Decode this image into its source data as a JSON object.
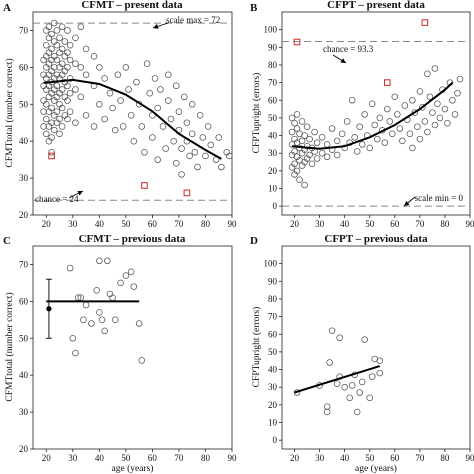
{
  "chart_data": [
    {
      "panel": "A",
      "type": "scatter",
      "title": "CFMT – present data",
      "xlabel": "",
      "ylabel": "CFMTtotal (number correct)",
      "xlim": [
        15,
        90
      ],
      "ylim": [
        20,
        75
      ],
      "xticks": [
        "20",
        "30",
        "40",
        "50",
        "60",
        "70",
        "80",
        "90"
      ],
      "yticks": [
        "20",
        "30",
        "40",
        "50",
        "60",
        "70"
      ],
      "reference_lines": [
        {
          "y": 72,
          "label": "scale max = 72"
        },
        {
          "y": 24,
          "label": "chance = 24"
        }
      ],
      "fit_curve": [
        [
          19,
          55.8
        ],
        [
          30,
          56.6
        ],
        [
          40,
          55.5
        ],
        [
          50,
          52.6
        ],
        [
          60,
          48.1
        ],
        [
          70,
          42.0
        ],
        [
          80,
          37.6
        ],
        [
          86,
          35.2
        ]
      ],
      "points": [
        [
          19,
          62
        ],
        [
          19,
          58
        ],
        [
          19,
          55
        ],
        [
          19,
          51
        ],
        [
          19,
          48
        ],
        [
          19,
          44
        ],
        [
          20,
          70
        ],
        [
          20,
          66
        ],
        [
          20,
          63
        ],
        [
          20,
          60
        ],
        [
          20,
          57
        ],
        [
          20,
          54
        ],
        [
          20,
          50
        ],
        [
          20,
          46
        ],
        [
          20,
          42
        ],
        [
          21,
          71
        ],
        [
          21,
          68
        ],
        [
          21,
          64
        ],
        [
          21,
          61
        ],
        [
          21,
          58
        ],
        [
          21,
          55
        ],
        [
          21,
          52
        ],
        [
          21,
          48
        ],
        [
          21,
          44
        ],
        [
          21,
          40
        ],
        [
          22,
          69
        ],
        [
          22,
          65
        ],
        [
          22,
          62
        ],
        [
          22,
          59
        ],
        [
          22,
          56
        ],
        [
          22,
          53
        ],
        [
          22,
          49
        ],
        [
          22,
          45
        ],
        [
          22,
          41
        ],
        [
          22,
          37
        ],
        [
          23,
          72
        ],
        [
          23,
          67
        ],
        [
          23,
          63
        ],
        [
          23,
          60
        ],
        [
          23,
          57
        ],
        [
          23,
          54
        ],
        [
          23,
          51
        ],
        [
          23,
          47
        ],
        [
          23,
          43
        ],
        [
          24,
          70
        ],
        [
          24,
          66
        ],
        [
          24,
          62
        ],
        [
          24,
          58
        ],
        [
          24,
          55
        ],
        [
          24,
          52
        ],
        [
          24,
          48
        ],
        [
          24,
          45
        ],
        [
          25,
          68
        ],
        [
          25,
          64
        ],
        [
          25,
          60
        ],
        [
          25,
          57
        ],
        [
          25,
          53
        ],
        [
          25,
          50
        ],
        [
          25,
          46
        ],
        [
          25,
          42
        ],
        [
          26,
          71
        ],
        [
          26,
          65
        ],
        [
          26,
          61
        ],
        [
          26,
          58
        ],
        [
          26,
          54
        ],
        [
          26,
          49
        ],
        [
          26,
          44
        ],
        [
          27,
          67
        ],
        [
          27,
          63
        ],
        [
          27,
          59
        ],
        [
          27,
          56
        ],
        [
          27,
          52
        ],
        [
          27,
          47
        ],
        [
          28,
          70
        ],
        [
          28,
          64
        ],
        [
          28,
          60
        ],
        [
          28,
          55
        ],
        [
          28,
          51
        ],
        [
          28,
          46
        ],
        [
          29,
          66
        ],
        [
          29,
          62
        ],
        [
          29,
          57
        ],
        [
          29,
          53
        ],
        [
          29,
          48
        ],
        [
          31,
          68
        ],
        [
          31,
          61
        ],
        [
          31,
          54
        ],
        [
          31,
          45
        ],
        [
          33,
          71
        ],
        [
          33,
          60
        ],
        [
          33,
          52
        ],
        [
          35,
          65
        ],
        [
          35,
          58
        ],
        [
          35,
          47
        ],
        [
          38,
          63
        ],
        [
          38,
          55
        ],
        [
          38,
          44
        ],
        [
          40,
          60
        ],
        [
          40,
          50
        ],
        [
          42,
          57
        ],
        [
          42,
          46
        ],
        [
          44,
          53
        ],
        [
          45,
          49
        ],
        [
          46,
          43
        ],
        [
          47,
          58
        ],
        [
          48,
          51
        ],
        [
          49,
          44
        ],
        [
          50,
          60
        ],
        [
          51,
          54
        ],
        [
          52,
          47
        ],
        [
          53,
          40
        ],
        [
          54,
          56
        ],
        [
          55,
          50
        ],
        [
          56,
          44
        ],
        [
          57,
          37
        ],
        [
          58,
          61
        ],
        [
          59,
          53
        ],
        [
          60,
          47
        ],
        [
          60,
          41
        ],
        [
          61,
          57
        ],
        [
          62,
          49
        ],
        [
          62,
          35
        ],
        [
          63,
          54
        ],
        [
          64,
          44
        ],
        [
          65,
          38
        ],
        [
          66,
          58
        ],
        [
          66,
          51
        ],
        [
          67,
          46
        ],
        [
          68,
          40
        ],
        [
          69,
          55
        ],
        [
          69,
          34
        ],
        [
          70,
          48
        ],
        [
          70,
          43
        ],
        [
          71,
          38
        ],
        [
          71,
          31
        ],
        [
          72,
          52
        ],
        [
          73,
          45
        ],
        [
          73,
          40
        ],
        [
          74,
          36
        ],
        [
          75,
          50
        ],
        [
          75,
          42
        ],
        [
          76,
          37
        ],
        [
          77,
          33
        ],
        [
          78,
          47
        ],
        [
          79,
          41
        ],
        [
          80,
          36
        ],
        [
          81,
          44
        ],
        [
          82,
          39
        ],
        [
          84,
          35
        ],
        [
          85,
          41
        ],
        [
          86,
          33
        ],
        [
          88,
          37
        ],
        [
          89,
          36
        ]
      ],
      "outliers": [
        [
          22,
          36
        ],
        [
          57,
          28
        ],
        [
          73,
          26
        ]
      ]
    },
    {
      "panel": "B",
      "type": "scatter",
      "title": "CFPT – present data",
      "xlabel": "",
      "ylabel": "CFPTupright (errors)",
      "xlim": [
        15,
        90
      ],
      "ylim": [
        -5,
        110
      ],
      "xticks": [
        "20",
        "30",
        "40",
        "50",
        "60",
        "70",
        "80",
        "90"
      ],
      "yticks": [
        "0",
        "10",
        "20",
        "30",
        "40",
        "50",
        "60",
        "70",
        "80",
        "90",
        "100"
      ],
      "reference_lines": [
        {
          "y": 93.3,
          "label": "chance = 93.3"
        },
        {
          "y": 0,
          "label": "scale min = 0"
        }
      ],
      "fit_curve": [
        [
          19,
          34
        ],
        [
          30,
          32.5
        ],
        [
          40,
          34
        ],
        [
          50,
          39
        ],
        [
          60,
          46
        ],
        [
          70,
          55
        ],
        [
          80,
          66
        ],
        [
          83,
          70
        ]
      ],
      "points": [
        [
          19,
          50
        ],
        [
          19,
          42
        ],
        [
          19,
          35
        ],
        [
          19,
          29
        ],
        [
          19,
          22
        ],
        [
          20,
          47
        ],
        [
          20,
          38
        ],
        [
          20,
          31
        ],
        [
          20,
          24
        ],
        [
          20,
          18
        ],
        [
          21,
          52
        ],
        [
          21,
          44
        ],
        [
          21,
          36
        ],
        [
          21,
          28
        ],
        [
          21,
          20
        ],
        [
          22,
          41
        ],
        [
          22,
          33
        ],
        [
          22,
          26
        ],
        [
          22,
          15
        ],
        [
          23,
          48
        ],
        [
          23,
          37
        ],
        [
          23,
          30
        ],
        [
          23,
          23
        ],
        [
          24,
          40
        ],
        [
          24,
          32
        ],
        [
          24,
          25
        ],
        [
          24,
          12
        ],
        [
          25,
          45
        ],
        [
          25,
          34
        ],
        [
          25,
          27
        ],
        [
          26,
          38
        ],
        [
          26,
          29
        ],
        [
          27,
          33
        ],
        [
          27,
          24
        ],
        [
          28,
          42
        ],
        [
          28,
          31
        ],
        [
          29,
          36
        ],
        [
          29,
          27
        ],
        [
          31,
          39
        ],
        [
          31,
          30
        ],
        [
          33,
          35
        ],
        [
          33,
          28
        ],
        [
          35,
          44
        ],
        [
          35,
          32
        ],
        [
          37,
          37
        ],
        [
          37,
          29
        ],
        [
          39,
          41
        ],
        [
          40,
          33
        ],
        [
          41,
          48
        ],
        [
          42,
          36
        ],
        [
          43,
          60
        ],
        [
          44,
          39
        ],
        [
          45,
          31
        ],
        [
          46,
          45
        ],
        [
          47,
          35
        ],
        [
          48,
          52
        ],
        [
          49,
          40
        ],
        [
          50,
          33
        ],
        [
          51,
          58
        ],
        [
          52,
          46
        ],
        [
          53,
          38
        ],
        [
          54,
          50
        ],
        [
          55,
          43
        ],
        [
          56,
          36
        ],
        [
          57,
          55
        ],
        [
          58,
          48
        ],
        [
          59,
          41
        ],
        [
          60,
          62
        ],
        [
          61,
          52
        ],
        [
          62,
          44
        ],
        [
          63,
          37
        ],
        [
          64,
          57
        ],
        [
          65,
          49
        ],
        [
          66,
          41
        ],
        [
          67,
          60
        ],
        [
          67,
          33
        ],
        [
          68,
          53
        ],
        [
          69,
          45
        ],
        [
          70,
          65
        ],
        [
          70,
          38
        ],
        [
          71,
          56
        ],
        [
          72,
          48
        ],
        [
          73,
          75
        ],
        [
          73,
          42
        ],
        [
          74,
          62
        ],
        [
          75,
          53
        ],
        [
          76,
          46
        ],
        [
          76,
          78
        ],
        [
          77,
          58
        ],
        [
          78,
          50
        ],
        [
          79,
          66
        ],
        [
          80,
          55
        ],
        [
          81,
          47
        ],
        [
          82,
          70
        ],
        [
          83,
          60
        ],
        [
          84,
          52
        ],
        [
          85,
          64
        ],
        [
          86,
          72
        ]
      ],
      "outliers": [
        [
          21,
          93
        ],
        [
          57,
          70
        ],
        [
          72,
          104
        ]
      ]
    },
    {
      "panel": "C",
      "type": "scatter",
      "title": "CFMT – previous data",
      "xlabel": "age (years)",
      "ylabel": "CFMTtotal (number correct)",
      "xlim": [
        15,
        90
      ],
      "ylim": [
        20,
        75
      ],
      "xticks": [
        "20",
        "30",
        "40",
        "50",
        "60",
        "70",
        "80",
        "90"
      ],
      "yticks": [
        "20",
        "30",
        "40",
        "50",
        "60",
        "70"
      ],
      "fit_line": [
        [
          20,
          60
        ],
        [
          55,
          60
        ]
      ],
      "summary_point": {
        "x": 21,
        "y": 58,
        "low": 50,
        "high": 66
      },
      "points": [
        [
          29,
          69
        ],
        [
          30,
          50
        ],
        [
          31,
          46
        ],
        [
          32,
          61
        ],
        [
          33,
          61
        ],
        [
          34,
          55
        ],
        [
          35,
          59
        ],
        [
          37,
          54
        ],
        [
          39,
          63
        ],
        [
          40,
          71
        ],
        [
          40,
          57
        ],
        [
          41,
          55
        ],
        [
          42,
          52
        ],
        [
          43,
          71
        ],
        [
          44,
          62
        ],
        [
          45,
          61
        ],
        [
          46,
          55
        ],
        [
          48,
          65
        ],
        [
          50,
          67
        ],
        [
          52,
          68
        ],
        [
          53,
          64
        ],
        [
          55,
          54
        ],
        [
          56,
          44
        ]
      ]
    },
    {
      "panel": "D",
      "type": "scatter",
      "title": "CFPT – previous data",
      "xlabel": "age (years)",
      "ylabel": "CFPTupright (errors)",
      "xlim": [
        15,
        90
      ],
      "ylim": [
        -5,
        110
      ],
      "xticks": [
        "20",
        "30",
        "40",
        "50",
        "60",
        "70",
        "80",
        "90"
      ],
      "yticks": [
        "0",
        "10",
        "20",
        "30",
        "40",
        "50",
        "60",
        "70",
        "80",
        "90",
        "100"
      ],
      "fit_line": [
        [
          20,
          27
        ],
        [
          54,
          42
        ]
      ],
      "points": [
        [
          21,
          27
        ],
        [
          30,
          31
        ],
        [
          33,
          16
        ],
        [
          33,
          19
        ],
        [
          34,
          44
        ],
        [
          35,
          62
        ],
        [
          37,
          32
        ],
        [
          38,
          58
        ],
        [
          38,
          36
        ],
        [
          40,
          30
        ],
        [
          42,
          24
        ],
        [
          43,
          31
        ],
        [
          44,
          37
        ],
        [
          45,
          16
        ],
        [
          46,
          27
        ],
        [
          47,
          33
        ],
        [
          48,
          57
        ],
        [
          50,
          24
        ],
        [
          51,
          36
        ],
        [
          52,
          46
        ],
        [
          54,
          38
        ],
        [
          54,
          45
        ]
      ]
    }
  ],
  "colors": {
    "points": "#555555",
    "outlier": "#cc2a2a",
    "fit": "#000000",
    "reference": "#888888",
    "axis": "#222222"
  }
}
